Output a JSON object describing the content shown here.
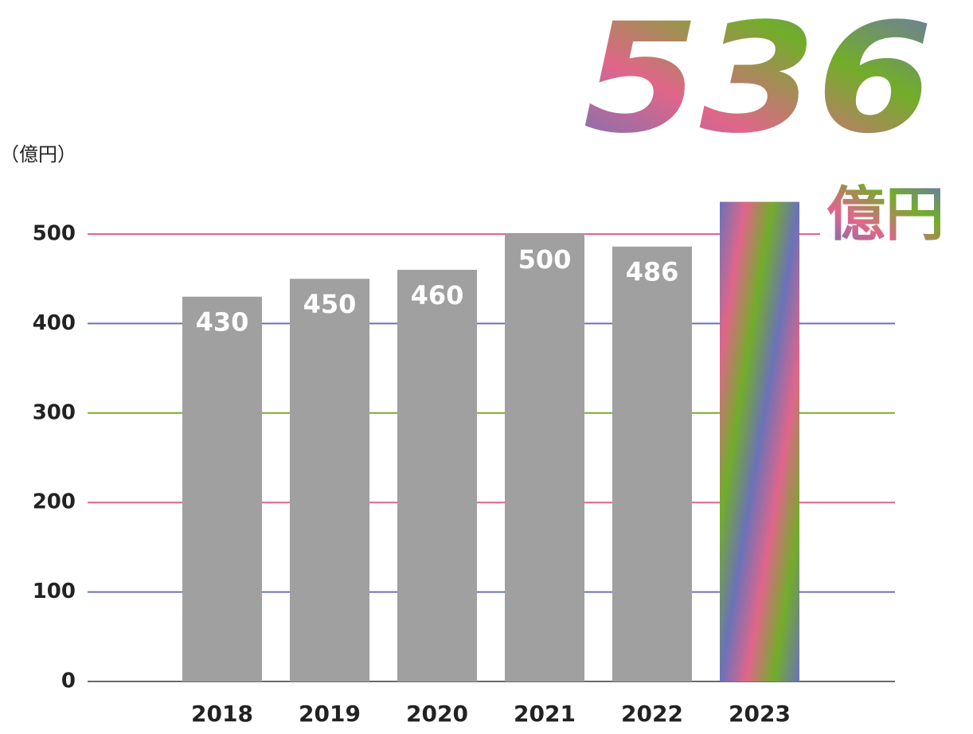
{
  "chart_data": {
    "type": "bar",
    "y_label": "（億円）",
    "categories": [
      "2018",
      "2019",
      "2020",
      "2021",
      "2022",
      "2023"
    ],
    "values": [
      430,
      450,
      460,
      500,
      486,
      536
    ],
    "color": "#a0a0a0",
    "highlight_colors": [
      "#6b72b8",
      "#e0668a",
      "#72ad2a"
    ],
    "highlight_unit": "億円",
    "ylim": [
      0,
      500
    ],
    "yticks": [
      0,
      100,
      200,
      300,
      400,
      500
    ],
    "grid": true,
    "grid_colors": [
      "#6b6b6b",
      "#6b72b8",
      "#e0668a",
      "#72ad2a",
      "#6b72b8",
      "#e0668a"
    ]
  }
}
